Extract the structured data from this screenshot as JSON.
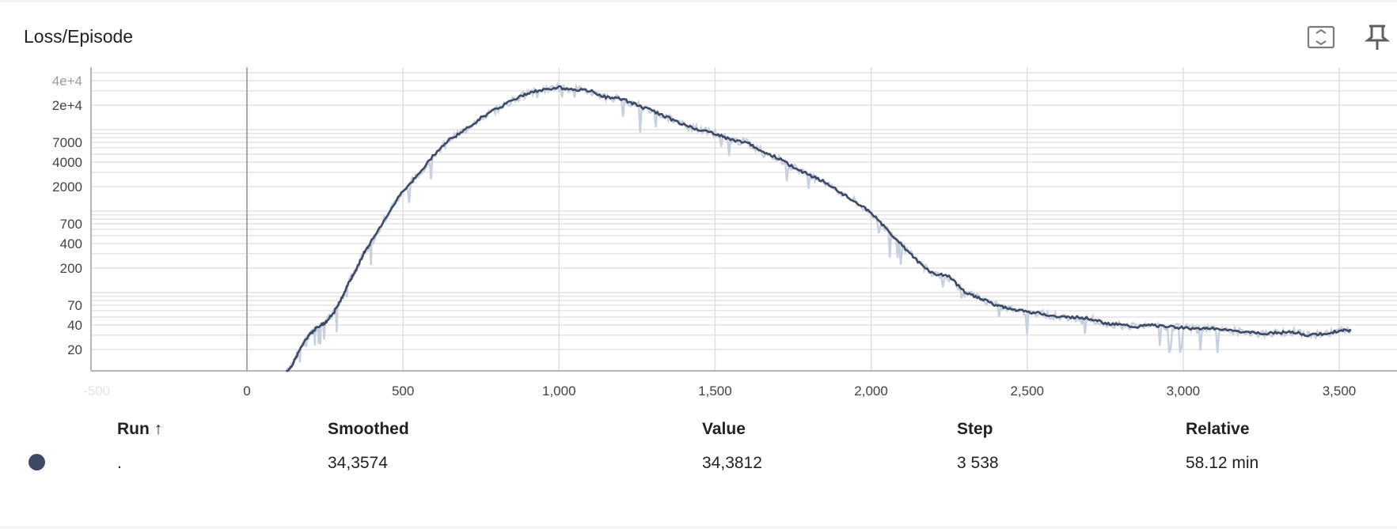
{
  "card": {
    "title": "Loss/Episode"
  },
  "toolbar": {
    "expand_icon": "fit-domain-icon",
    "pin_icon": "pin-icon"
  },
  "chart_data": {
    "type": "line",
    "title": "Loss/Episode",
    "xlabel": "",
    "ylabel": "",
    "y_scale": "log",
    "xlim": [
      -500,
      3700
    ],
    "ylim": [
      10,
      50000
    ],
    "x_ticks": [
      "-500",
      "0",
      "500",
      "1,000",
      "1,500",
      "2,000",
      "2,500",
      "3,000",
      "3,500"
    ],
    "y_ticks": [
      "20",
      "40",
      "70",
      "200",
      "400",
      "700",
      "2000",
      "4000",
      "7000",
      "2e+4",
      "4e+4"
    ],
    "grid": true,
    "smoothed_color": "#3d4a63",
    "raw_color": "#c7d0de",
    "series": [
      {
        "x": [
          125,
          150,
          175,
          200,
          225,
          250,
          275,
          300,
          325,
          350,
          375,
          400,
          450,
          500,
          550,
          600,
          650,
          700,
          750,
          800,
          850,
          900,
          950,
          1000,
          1050,
          1100,
          1150,
          1200,
          1250,
          1300,
          1350,
          1400,
          1450,
          1500,
          1550,
          1600,
          1650,
          1700,
          1750,
          1800,
          1850,
          1900,
          1950,
          2000,
          2050,
          2100,
          2150,
          2200,
          2250,
          2300,
          2350,
          2400,
          2450,
          2500,
          2550,
          2600,
          2650,
          2700,
          2750,
          2800,
          2850,
          2900,
          2950,
          3000,
          3050,
          3100,
          3150,
          3200,
          3250,
          3300,
          3350,
          3400,
          3450,
          3500,
          3538
        ],
        "values": [
          10,
          14,
          22,
          30,
          38,
          42,
          54,
          80,
          130,
          190,
          310,
          430,
          900,
          1800,
          2800,
          5000,
          7600,
          10000,
          14000,
          18000,
          23000,
          28000,
          31000,
          33000,
          31000,
          30000,
          25000,
          24000,
          20000,
          17000,
          14000,
          11500,
          10000,
          9000,
          7500,
          7000,
          5500,
          4500,
          3500,
          2800,
          2300,
          1700,
          1300,
          950,
          600,
          380,
          240,
          170,
          160,
          100,
          85,
          70,
          62,
          58,
          55,
          50,
          50,
          48,
          42,
          40,
          38,
          40,
          38,
          37,
          36,
          36,
          34,
          33,
          31,
          32,
          33,
          30,
          31,
          34,
          34.38
        ]
      }
    ]
  },
  "table": {
    "headers": {
      "run": "Run ↑",
      "smoothed": "Smoothed",
      "value": "Value",
      "step": "Step",
      "relative": "Relative"
    },
    "row": {
      "run": ".",
      "smoothed": "34,3574",
      "value": "34,3812",
      "step": "3 538",
      "relative": "58.12 min"
    }
  }
}
